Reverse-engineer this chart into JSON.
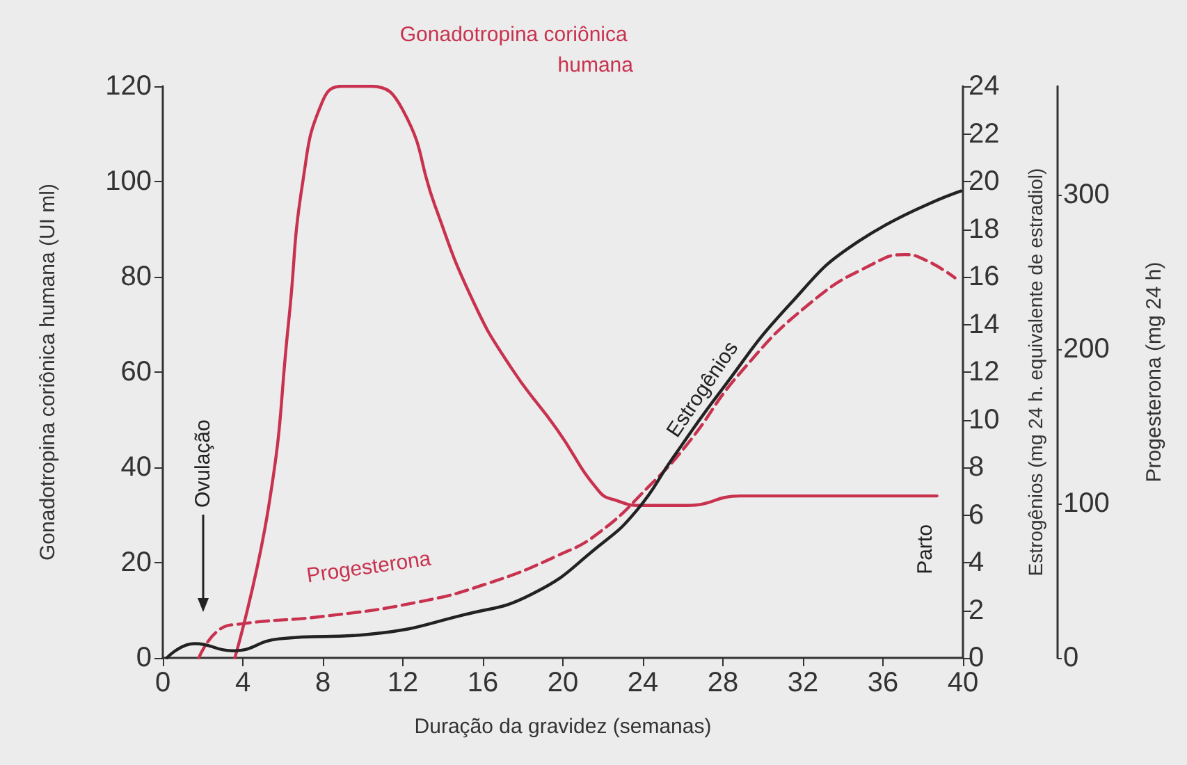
{
  "chart_data": {
    "type": "line",
    "xlabel": "Duração da gravidez (semanas)",
    "ylabel": "Gonadotropina coriônica humana (UI ml)",
    "y2label": "Estrogênios (mg 24 h. equivalente de estradiol)",
    "y3label": "Progesterona (mg 24 h)",
    "xlim": [
      0,
      40
    ],
    "xticks": [
      0,
      4,
      8,
      12,
      16,
      20,
      24,
      28,
      32,
      36,
      40
    ],
    "ylim": [
      0,
      120
    ],
    "yticks": [
      0,
      20,
      40,
      60,
      80,
      100,
      120
    ],
    "y2lim": [
      0,
      24
    ],
    "y2ticks": [
      0,
      2,
      4,
      6,
      8,
      10,
      12,
      14,
      16,
      18,
      20,
      22,
      24
    ],
    "y3lim": [
      0,
      370
    ],
    "y3ticks": [
      0,
      100,
      200,
      300
    ],
    "grid": false,
    "legend": false,
    "marker": "none",
    "series": [
      {
        "name": "Gonadotropina coriônica humana",
        "color": "#c8324f",
        "x": [
          3.6,
          5.3,
          6.3,
          7.0,
          8.0,
          9.0,
          10.4,
          12,
          13.6,
          15.5,
          17.4,
          19.7,
          21.8,
          22.7,
          23.9,
          26.2,
          28.9,
          32.4,
          38.7
        ],
        "values": [
          0,
          32,
          71,
          100,
          117,
          120,
          120,
          115,
          95,
          75,
          61,
          48,
          35,
          33,
          32,
          32,
          34,
          34,
          34
        ]
      },
      {
        "name": "Progesterona",
        "color": "#c8324f",
        "line_style": "dashed",
        "axis": "y3",
        "x": [
          1.8,
          2.8,
          3.9,
          8.1,
          12.7,
          16.2,
          19.7,
          21.8,
          24.3,
          26.2,
          28.9,
          32.4,
          35.5,
          37.1,
          38.2,
          39.6
        ],
        "values": [
          0,
          18,
          22,
          27,
          36,
          48,
          66,
          81,
          111,
          138,
          185,
          230,
          255,
          261,
          257,
          246
        ]
      },
      {
        "name": "Estrogênios",
        "color": "#222222",
        "axis": "y2",
        "x": [
          0.2,
          1.6,
          3.5,
          5.8,
          10.4,
          15,
          18.5,
          21.8,
          23.7,
          25.5,
          27.8,
          31.3,
          34.8,
          39.9
        ],
        "values": [
          0,
          0.6,
          0.3,
          0.8,
          1.0,
          1.8,
          2.7,
          4.7,
          6.2,
          8.4,
          11.1,
          14.8,
          17.5,
          19.6
        ]
      }
    ],
    "annotations": [
      "Ovulação",
      "Parto"
    ]
  }
}
